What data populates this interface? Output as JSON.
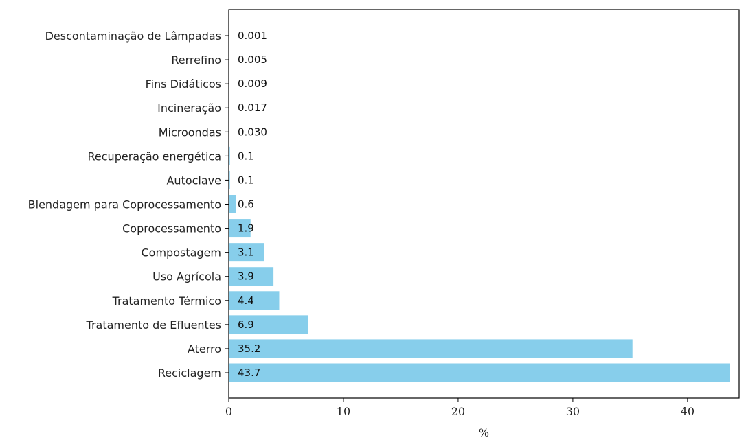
{
  "chart_data": {
    "type": "bar",
    "orientation": "horizontal",
    "title": "",
    "xlabel": "%",
    "ylabel": "",
    "xlim": [
      0,
      44.5
    ],
    "x_ticks": [
      0,
      10,
      20,
      30,
      40
    ],
    "grid": false,
    "bar_color": "#87ceeb",
    "categories": [
      "Reciclagem",
      "Aterro",
      "Tratamento de Efluentes",
      "Tratamento Térmico",
      "Uso Agrícola",
      "Compostagem",
      "Coprocessamento",
      "Blendagem para Coprocessamento",
      "Autoclave",
      "Recuperação energética",
      "Microondas",
      "Incineração",
      "Fins Didáticos",
      "Rerrefino",
      "Descontaminação de Lâmpadas"
    ],
    "values": [
      43.7,
      35.2,
      6.9,
      4.4,
      3.9,
      3.1,
      1.9,
      0.6,
      0.1,
      0.1,
      0.03,
      0.017,
      0.009,
      0.005,
      0.001
    ],
    "value_labels": [
      "43.7",
      "35.2",
      "6.9",
      "4.4",
      "3.9",
      "3.1",
      "1.9",
      "0.6",
      "0.1",
      "0.1",
      "0.030",
      "0.017",
      "0.009",
      "0.005",
      "0.001"
    ]
  }
}
